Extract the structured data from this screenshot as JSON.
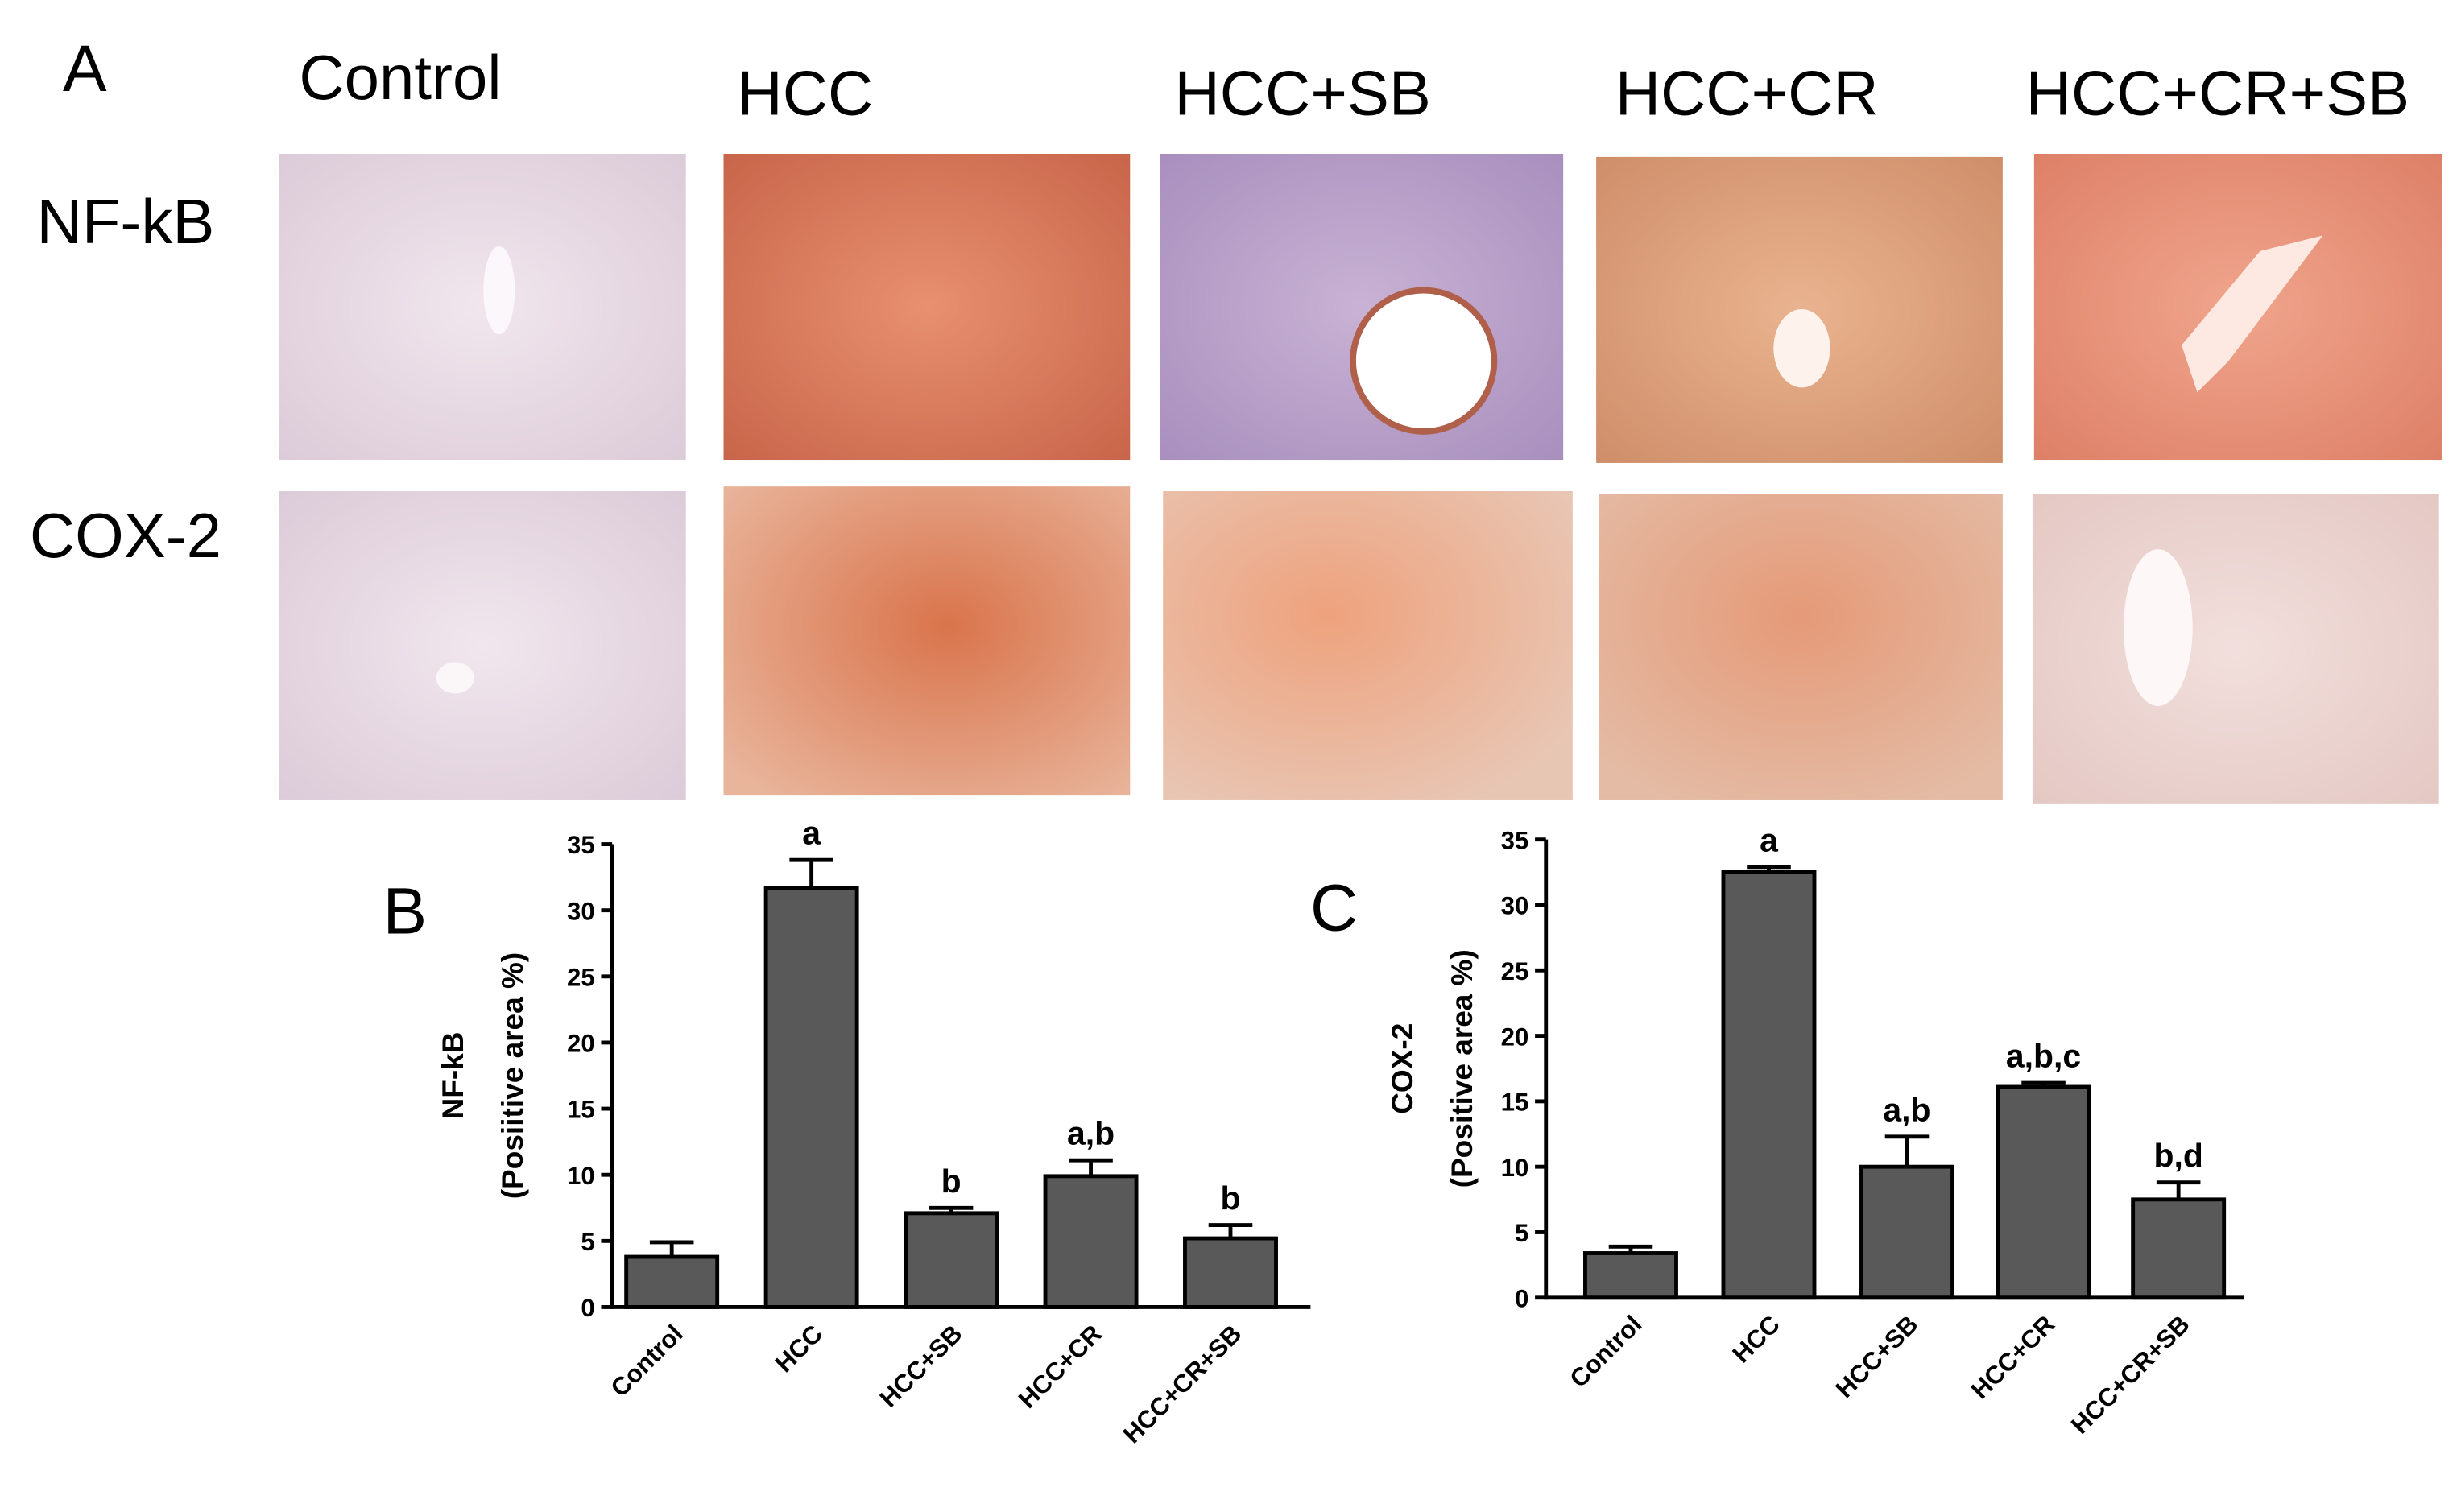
{
  "panel_a": {
    "label": "A",
    "columns": [
      "Control",
      "HCC",
      "HCC+SB",
      "HCC+CR",
      "HCC+CR+SB"
    ],
    "rows": [
      "NF-kB",
      "COX-2"
    ]
  },
  "chart_data": [
    {
      "type": "bar",
      "label": "B",
      "y_label": [
        "NF-kB",
        "(Posiitive area %)"
      ],
      "categories": [
        "Control",
        "HCC",
        "HCC+SB",
        "HCC+CR",
        "HCC+CR+SB"
      ],
      "values": [
        3.8,
        31.7,
        7.1,
        9.9,
        5.2
      ],
      "errors": [
        1.1,
        2.1,
        0.4,
        1.2,
        1.0
      ],
      "annotations": [
        null,
        "a",
        "b",
        "a,b",
        "b"
      ],
      "color": "#595959",
      "ylim": [
        0,
        35
      ],
      "yticks": [
        0,
        5,
        10,
        15,
        20,
        25,
        30,
        35
      ]
    },
    {
      "type": "bar",
      "label": "C",
      "y_label": [
        "COX-2",
        "(Positive area %)"
      ],
      "categories": [
        "Control",
        "HCC",
        "HCC+SB",
        "HCC+CR",
        "HCC+CR+SB"
      ],
      "values": [
        3.4,
        32.5,
        10.0,
        16.1,
        7.5
      ],
      "errors": [
        0.5,
        0.4,
        2.3,
        0.3,
        1.3
      ],
      "annotations": [
        null,
        "a",
        "a,b",
        "a,b,c",
        "b,d"
      ],
      "color": "#595959",
      "ylim": [
        0,
        35
      ],
      "yticks": [
        0,
        5,
        10,
        15,
        20,
        25,
        30,
        35
      ]
    }
  ]
}
